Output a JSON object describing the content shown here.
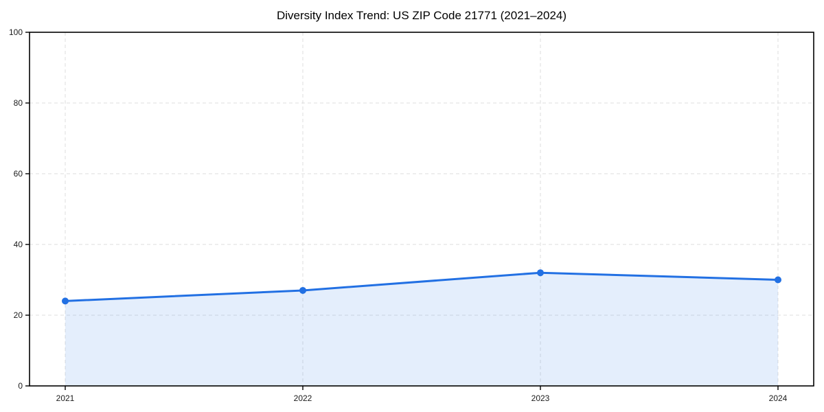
{
  "chart_data": {
    "type": "line",
    "title": "Diversity Index Trend: US ZIP Code 21771 (2021–2024)",
    "xlabel": "",
    "ylabel": "",
    "x": [
      2021,
      2022,
      2023,
      2024
    ],
    "xticks": [
      "2021",
      "2022",
      "2023",
      "2024"
    ],
    "series": [
      {
        "name": "Diversity Index",
        "values": [
          24,
          27,
          32,
          30
        ]
      }
    ],
    "ylim": [
      0,
      100
    ],
    "yticks": [
      0,
      20,
      40,
      60,
      80,
      100
    ],
    "grid": true,
    "grid_style": "dashed",
    "legend": false,
    "marker": "circle",
    "area_fill": true,
    "colors": {
      "line": "#2270e3",
      "marker": "#2270e3",
      "area_fill": "rgba(34,112,227,0.12)",
      "grid": "#dedede",
      "spine": "#000000",
      "tick_text": "#1a1a1a",
      "background": "#ffffff"
    }
  }
}
